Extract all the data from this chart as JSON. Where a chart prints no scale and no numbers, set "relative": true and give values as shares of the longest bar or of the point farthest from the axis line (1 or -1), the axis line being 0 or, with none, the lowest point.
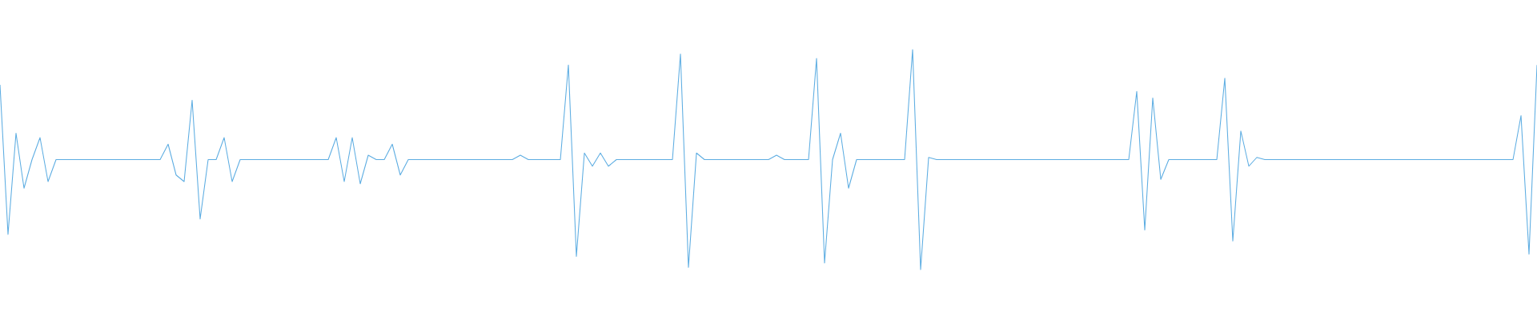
{
  "chart_data": {
    "type": "line",
    "relative": true,
    "color": "#5dade2",
    "categories": [
      null,
      null,
      null,
      null,
      null,
      null,
      null,
      null,
      null,
      null,
      null,
      null,
      null,
      null,
      null,
      null,
      null,
      null,
      null,
      null,
      null,
      null,
      null,
      null,
      null,
      null,
      null,
      null,
      null,
      null,
      null,
      null,
      null,
      null,
      null,
      null,
      null,
      null,
      null,
      null,
      null,
      null,
      null,
      null,
      null,
      null,
      null,
      null,
      null,
      null,
      null,
      null,
      null,
      null,
      null,
      null,
      null,
      null,
      null,
      null,
      null,
      null,
      null,
      null,
      null,
      null,
      null,
      null,
      null,
      null,
      null,
      null,
      null,
      null,
      null,
      null,
      null,
      null,
      null,
      null,
      null,
      null,
      null,
      null,
      null,
      null,
      null,
      null,
      null,
      null,
      null,
      null,
      null,
      null,
      null,
      null,
      null,
      null,
      null,
      null,
      null,
      null,
      null,
      null,
      null,
      null,
      null,
      null,
      null,
      null,
      null,
      null,
      null,
      null,
      null,
      null,
      null,
      null,
      null,
      null,
      null,
      null,
      null,
      null,
      null,
      null,
      null,
      null,
      null,
      null,
      null,
      null,
      null,
      null,
      null,
      null,
      null,
      null,
      null,
      null,
      null,
      null,
      null,
      null,
      null,
      null,
      null,
      null,
      null,
      null,
      null,
      null,
      null,
      null,
      null,
      null,
      null,
      null,
      null,
      null,
      null,
      null,
      null,
      null,
      null,
      null,
      null,
      null,
      null,
      null,
      null,
      null,
      null,
      null,
      null,
      null,
      null,
      null,
      null,
      null,
      null,
      null,
      null,
      null,
      null,
      null,
      null,
      null,
      null,
      null,
      null,
      null,
      null
    ],
    "values": [
      0.84,
      0.16,
      0.62,
      0.37,
      0.5,
      0.6,
      0.4,
      0.5,
      0.5,
      0.5,
      0.5,
      0.5,
      0.5,
      0.5,
      0.5,
      0.5,
      0.5,
      0.5,
      0.5,
      0.5,
      0.5,
      0.57,
      0.43,
      0.4,
      0.77,
      0.23,
      0.5,
      0.5,
      0.6,
      0.4,
      0.5,
      0.5,
      0.5,
      0.5,
      0.5,
      0.5,
      0.5,
      0.5,
      0.5,
      0.5,
      0.5,
      0.5,
      0.6,
      0.4,
      0.6,
      0.39,
      0.52,
      0.5,
      0.5,
      0.57,
      0.43,
      0.5,
      0.5,
      0.5,
      0.5,
      0.5,
      0.5,
      0.5,
      0.5,
      0.5,
      0.5,
      0.5,
      0.5,
      0.5,
      0.5,
      0.52,
      0.5,
      0.5,
      0.5,
      0.5,
      0.5,
      0.93,
      0.06,
      0.53,
      0.47,
      0.53,
      0.47,
      0.5,
      0.5,
      0.5,
      0.5,
      0.5,
      0.5,
      0.5,
      0.5,
      0.98,
      0.01,
      0.53,
      0.5,
      0.5,
      0.5,
      0.5,
      0.5,
      0.5,
      0.5,
      0.5,
      0.5,
      0.52,
      0.5,
      0.5,
      0.5,
      0.5,
      0.96,
      0.03,
      0.5,
      0.62,
      0.37,
      0.5,
      0.5,
      0.5,
      0.5,
      0.5,
      0.5,
      0.5,
      1,
      0,
      0.51,
      0.5,
      0.5,
      0.5,
      0.5,
      0.5,
      0.5,
      0.5,
      0.5,
      0.5,
      0.5,
      0.5,
      0.5,
      0.5,
      0.5,
      0.5,
      0.5,
      0.5,
      0.5,
      0.5,
      0.5,
      0.5,
      0.5,
      0.5,
      0.5,
      0.5,
      0.81,
      0.18,
      0.78,
      0.41,
      0.5,
      0.5,
      0.5,
      0.5,
      0.5,
      0.5,
      0.5,
      0.87,
      0.13,
      0.63,
      0.47,
      0.51,
      0.5,
      0.5,
      0.5,
      0.5,
      0.5,
      0.5,
      0.5,
      0.5,
      0.5,
      0.5,
      0.5,
      0.5,
      0.5,
      0.5,
      0.5,
      0.5,
      0.5,
      0.5,
      0.5,
      0.5,
      0.5,
      0.5,
      0.5,
      0.5,
      0.5,
      0.5,
      0.5,
      0.5,
      0.5,
      0.5,
      0.5,
      0.5,
      0.7,
      0.07,
      0.93
    ]
  }
}
